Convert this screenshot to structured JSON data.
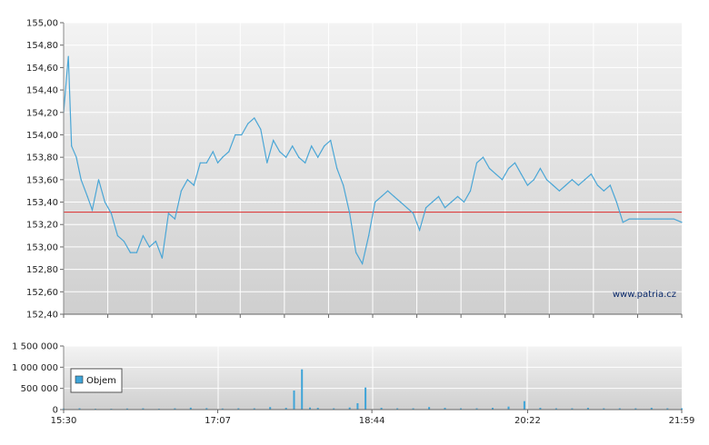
{
  "chart_data": [
    {
      "type": "line",
      "title": "",
      "xlabel": "",
      "ylabel": "",
      "ylim": [
        152.4,
        155.0
      ],
      "y_ticks": [
        "155,00",
        "154,80",
        "154,60",
        "154,40",
        "154,20",
        "154,00",
        "153,80",
        "153,60",
        "153,40",
        "153,20",
        "153,00",
        "152,80",
        "152,60",
        "152,40"
      ],
      "x_ticks": [
        "15:30",
        "17:07",
        "18:44",
        "20:22",
        "21:59"
      ],
      "x_range": [
        "15:30",
        "21:59"
      ],
      "reference_line": 153.31,
      "grid": true,
      "colors": {
        "line": "#4aa6d6",
        "reference": "#dd2a2a",
        "grid": "#ffffff",
        "bg_top": "#f3f3f3",
        "bg_bottom": "#cfcfcf"
      },
      "watermark": "www.patria.cz",
      "series": [
        {
          "x": [
            "15:30",
            "15:33",
            "15:35",
            "15:38",
            "15:41",
            "15:45",
            "15:48",
            "15:52",
            "15:56",
            "16:00",
            "16:04",
            "16:08",
            "16:12",
            "16:16",
            "16:20",
            "16:24",
            "16:28",
            "16:32",
            "16:36",
            "16:40",
            "16:44",
            "16:48",
            "16:52",
            "16:56",
            "17:00",
            "17:04",
            "17:07",
            "17:10",
            "17:14",
            "17:18",
            "17:22",
            "17:26",
            "17:30",
            "17:34",
            "17:38",
            "17:42",
            "17:46",
            "17:50",
            "17:54",
            "17:58",
            "18:02",
            "18:06",
            "18:10",
            "18:14",
            "18:18",
            "18:22",
            "18:26",
            "18:30",
            "18:34",
            "18:38",
            "18:42",
            "18:46",
            "18:50",
            "18:54",
            "18:58",
            "19:02",
            "19:06",
            "19:10",
            "19:14",
            "19:18",
            "19:22",
            "19:26",
            "19:30",
            "19:34",
            "19:38",
            "19:42",
            "19:46",
            "19:50",
            "19:54",
            "19:58",
            "20:02",
            "20:06",
            "20:10",
            "20:14",
            "20:18",
            "20:22",
            "20:26",
            "20:30",
            "20:34",
            "20:38",
            "20:42",
            "20:46",
            "20:50",
            "20:54",
            "20:58",
            "21:02",
            "21:06",
            "21:10",
            "21:14",
            "21:18",
            "21:22",
            "21:26",
            "21:30",
            "21:34",
            "21:38",
            "21:42",
            "21:46",
            "21:50",
            "21:54",
            "21:59"
          ],
          "values": [
            154.2,
            154.7,
            153.9,
            153.8,
            153.6,
            153.45,
            153.33,
            153.6,
            153.4,
            153.3,
            153.1,
            153.05,
            152.95,
            152.95,
            153.1,
            153.0,
            153.05,
            152.9,
            153.3,
            153.25,
            153.5,
            153.6,
            153.55,
            153.75,
            153.75,
            153.85,
            153.75,
            153.8,
            153.85,
            154.0,
            154.0,
            154.1,
            154.15,
            154.05,
            153.75,
            153.95,
            153.85,
            153.8,
            153.9,
            153.8,
            153.75,
            153.9,
            153.8,
            153.9,
            153.95,
            153.7,
            153.55,
            153.3,
            152.95,
            152.85,
            153.1,
            153.4,
            153.45,
            153.5,
            153.45,
            153.4,
            153.35,
            153.3,
            153.15,
            153.35,
            153.4,
            153.45,
            153.35,
            153.4,
            153.45,
            153.4,
            153.5,
            153.75,
            153.8,
            153.7,
            153.65,
            153.6,
            153.7,
            153.75,
            153.65,
            153.55,
            153.6,
            153.7,
            153.6,
            153.55,
            153.5,
            153.55,
            153.6,
            153.55,
            153.6,
            153.65,
            153.55,
            153.5,
            153.55,
            153.4,
            153.22,
            153.25,
            153.25,
            153.25,
            153.25,
            153.25,
            153.25,
            153.25,
            153.25,
            153.22
          ]
        }
      ]
    },
    {
      "type": "bar",
      "title": "",
      "ylim": [
        0,
        1500000
      ],
      "y_ticks": [
        "1 500 000",
        "1 000 000",
        "500 000",
        "0"
      ],
      "x_ticks": [
        "15:30",
        "17:07",
        "18:44",
        "20:22",
        "21:59"
      ],
      "x_range": [
        "15:30",
        "21:59"
      ],
      "legend": {
        "position": "top-left",
        "entries": [
          {
            "label": "Objem",
            "color": "#3ea4d8"
          }
        ]
      },
      "colors": {
        "bar": "#3ea4d8",
        "grid": "#ffffff",
        "bg_top": "#f3f3f3",
        "bg_bottom": "#cfcfcf"
      },
      "series": [
        {
          "name": "Objem",
          "x": [
            "15:30",
            "15:40",
            "15:50",
            "16:00",
            "16:10",
            "16:20",
            "16:30",
            "16:40",
            "16:50",
            "17:00",
            "17:10",
            "17:20",
            "17:30",
            "17:40",
            "17:50",
            "17:55",
            "18:00",
            "18:05",
            "18:10",
            "18:20",
            "18:30",
            "18:35",
            "18:40",
            "18:50",
            "19:00",
            "19:10",
            "19:20",
            "19:30",
            "19:40",
            "19:50",
            "20:00",
            "20:10",
            "20:20",
            "20:30",
            "20:40",
            "20:50",
            "21:00",
            "21:10",
            "21:20",
            "21:30",
            "21:40",
            "21:50",
            "21:59"
          ],
          "values": [
            25000,
            30000,
            20000,
            20000,
            25000,
            30000,
            20000,
            30000,
            45000,
            35000,
            25000,
            30000,
            30000,
            60000,
            40000,
            450000,
            950000,
            50000,
            40000,
            30000,
            50000,
            150000,
            520000,
            40000,
            30000,
            30000,
            60000,
            40000,
            30000,
            30000,
            40000,
            70000,
            200000,
            40000,
            30000,
            30000,
            40000,
            30000,
            30000,
            30000,
            40000,
            30000,
            30000
          ]
        }
      ]
    }
  ]
}
